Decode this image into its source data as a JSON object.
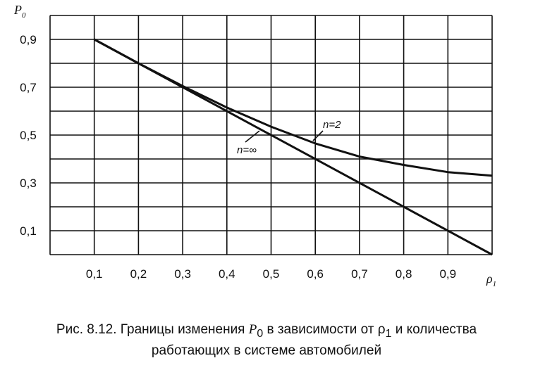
{
  "chart_data": {
    "type": "line",
    "ylabel_main": "P",
    "ylabel_sub": "0",
    "xlabel_main": "ρ",
    "xlabel_sub": "1",
    "x_ticks": [
      "0,1",
      "0,2",
      "0,3",
      "0,4",
      "0,5",
      "0,6",
      "0,7",
      "0,8",
      "0,9"
    ],
    "y_ticks": [
      "0,9",
      "0,7",
      "0,5",
      "0,3",
      "0,1"
    ],
    "y_tick_values": [
      0.9,
      0.7,
      0.5,
      0.3,
      0.1
    ],
    "xlim": [
      0.0,
      1.0
    ],
    "ylim": [
      0.0,
      1.0
    ],
    "grid": true,
    "series": [
      {
        "name": "n=∞",
        "x": [
          0.1,
          1.0
        ],
        "y": [
          0.9,
          0.0
        ]
      },
      {
        "name": "n=2",
        "x": [
          0.1,
          0.2,
          0.3,
          0.4,
          0.5,
          0.6,
          0.7,
          0.8,
          0.9,
          1.0
        ],
        "y": [
          0.9,
          0.8,
          0.705,
          0.615,
          0.535,
          0.465,
          0.41,
          0.375,
          0.345,
          0.33
        ]
      }
    ]
  },
  "caption": {
    "line1_a": "Рис. 8.12. Границы изменения ",
    "line1_p": "P",
    "line1_psub": "0",
    "line1_b": " в зависимости от ",
    "line1_rho": "ρ",
    "line1_rhosub": "1",
    "line1_c": "  и  количества",
    "line2": "работающих в системе автомобилей"
  }
}
